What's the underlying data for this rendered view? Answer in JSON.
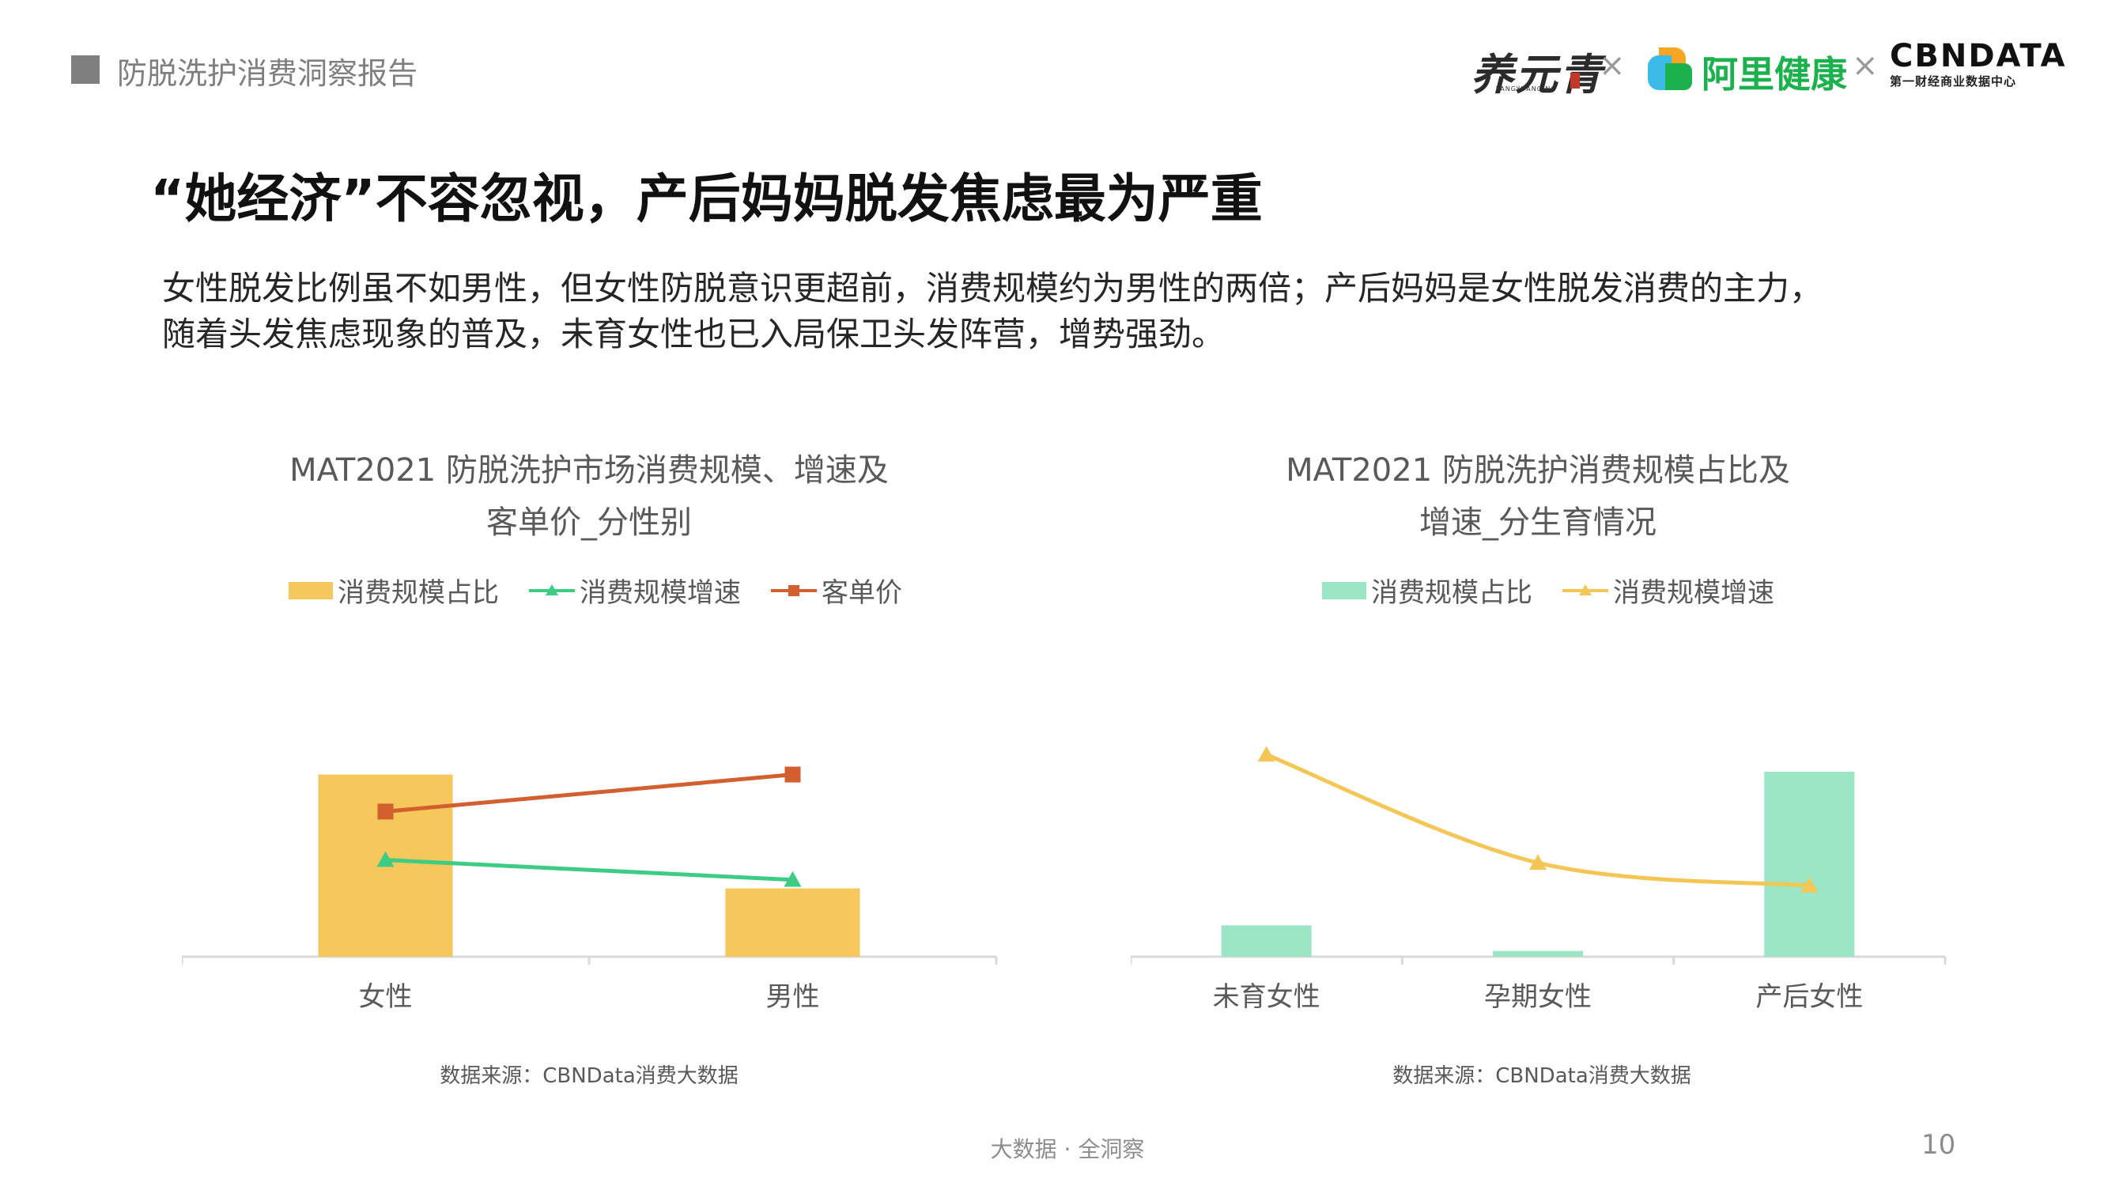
{
  "header": {
    "report_title": "防脱洗护消费洞察报告",
    "logos": {
      "yangyuanqing_cn": "养元青",
      "yangyuanqing_en": "YANGYUANQING",
      "separator": "×",
      "alihealth": "阿里健康",
      "cbndata_main": "CBNDATA",
      "cbndata_sub": "第一财经商业数据中心"
    }
  },
  "title": "“她经济”不容忽视，产后妈妈脱发焦虑最为严重",
  "summary_lines": [
    "女性脱发比例虽不如男性，但女性防脱意识更超前，消费规模约为男性的两倍；产后妈妈是女性脱发消费的主力，",
    "随着头发焦虑现象的普及，未育女性也已入局保卫头发阵营，增势强劲。"
  ],
  "colors": {
    "gold": "#f6c75a",
    "green_line": "#3dcc83",
    "orange_line": "#d35f2e",
    "mint": "#9be6c4",
    "yellow_line": "#f4c655",
    "axis": "#d9d9d9"
  },
  "chart_data": [
    {
      "type": "bar",
      "title_line1": "MAT2021 防脱洗护市场消费规模、增速及",
      "title_line2": "客单价_分性别",
      "categories": [
        "女性",
        "男性"
      ],
      "series": [
        {
          "name": "消费规模占比",
          "kind": "bar",
          "values": [
            0.64,
            0.24
          ]
        },
        {
          "name": "消费规模增速",
          "kind": "line",
          "marker": "triangle",
          "values": [
            0.34,
            0.27
          ]
        },
        {
          "name": "客单价",
          "kind": "line",
          "marker": "square",
          "values": [
            0.51,
            0.64
          ]
        }
      ],
      "ylim": [
        0,
        1
      ],
      "grid": false,
      "legend": "top",
      "source": "数据来源：CBNData消费大数据"
    },
    {
      "type": "bar",
      "title_line1": "MAT2021 防脱洗护消费规模占比及",
      "title_line2": "增速_分生育情况",
      "categories": [
        "未育女性",
        "孕期女性",
        "产后女性"
      ],
      "series": [
        {
          "name": "消费规模占比",
          "kind": "bar",
          "values": [
            0.11,
            0.02,
            0.65
          ]
        },
        {
          "name": "消费规模增速",
          "kind": "line",
          "marker": "triangle",
          "smooth": true,
          "values": [
            0.71,
            0.33,
            0.25
          ]
        }
      ],
      "ylim": [
        0,
        1
      ],
      "grid": false,
      "legend": "top",
      "source": "数据来源：CBNData消费大数据"
    }
  ],
  "footer": {
    "slogan": "大数据 · 全洞察",
    "page_number": "10"
  }
}
